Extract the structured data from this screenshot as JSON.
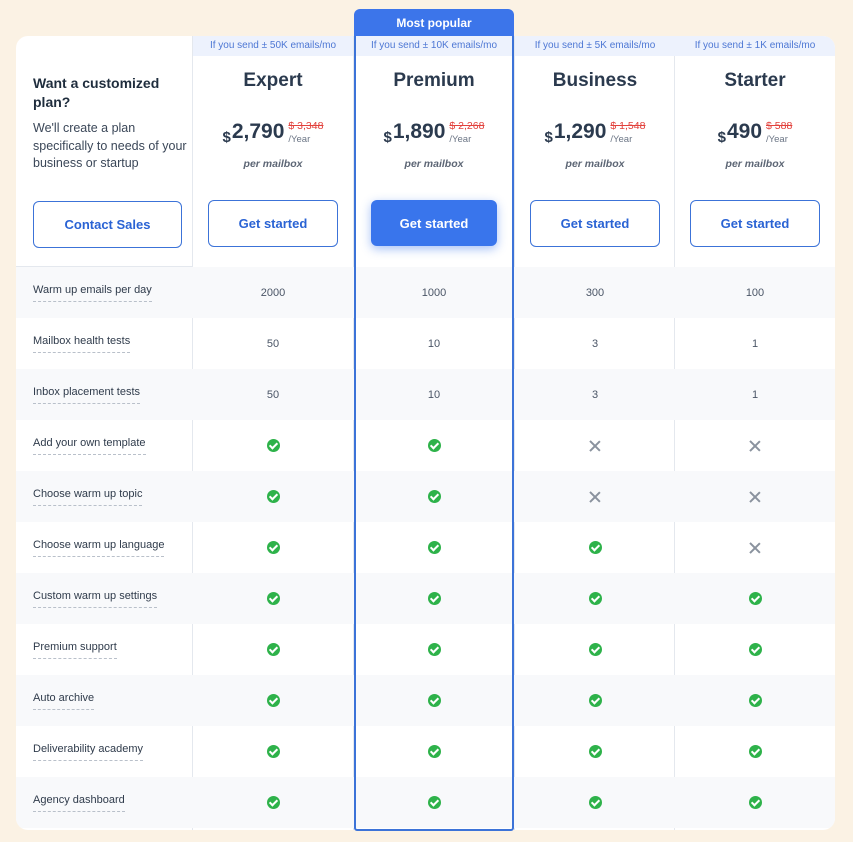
{
  "badge": "Most popular",
  "intro": {
    "title": "Want a customized plan?",
    "description": "We'll create a plan specifically to needs of your business or startup",
    "contact_label": "Contact Sales"
  },
  "currency_symbol": "$",
  "plans": [
    {
      "name": "Expert",
      "subheading": "If you send ± 50K emails/mo",
      "price": "2,790",
      "old_price": "$ 3,348",
      "period": "/Year",
      "per": "per mailbox",
      "cta": "Get started"
    },
    {
      "name": "Premium",
      "subheading": "If you send ± 10K emails/mo",
      "price": "1,890",
      "old_price": "$ 2,268",
      "period": "/Year",
      "per": "per mailbox",
      "cta": "Get started"
    },
    {
      "name": "Business",
      "subheading": "If you send ± 5K emails/mo",
      "price": "1,290",
      "old_price": "$ 1,548",
      "period": "/Year",
      "per": "per mailbox",
      "cta": "Get started"
    },
    {
      "name": "Starter",
      "subheading": "If you send ± 1K emails/mo",
      "price": "490",
      "old_price": "$ 588",
      "period": "/Year",
      "per": "per mailbox",
      "cta": "Get started"
    }
  ],
  "features": [
    {
      "label": "Warm up emails per day",
      "values": [
        "2000",
        "1000",
        "300",
        "100"
      ]
    },
    {
      "label": "Mailbox health tests",
      "values": [
        "50",
        "10",
        "3",
        "1"
      ]
    },
    {
      "label": "Inbox placement tests",
      "values": [
        "50",
        "10",
        "3",
        "1"
      ]
    },
    {
      "label": "Add your own template",
      "values": [
        true,
        true,
        false,
        false
      ]
    },
    {
      "label": "Choose warm up topic",
      "values": [
        true,
        true,
        false,
        false
      ]
    },
    {
      "label": "Choose warm up language",
      "values": [
        true,
        true,
        true,
        false
      ]
    },
    {
      "label": "Custom warm up settings",
      "values": [
        true,
        true,
        true,
        true
      ]
    },
    {
      "label": "Premium support",
      "values": [
        true,
        true,
        true,
        true
      ]
    },
    {
      "label": "Auto archive",
      "values": [
        true,
        true,
        true,
        true
      ]
    },
    {
      "label": "Deliverability academy",
      "values": [
        true,
        true,
        true,
        true
      ]
    },
    {
      "label": "Agency dashboard",
      "values": [
        true,
        true,
        true,
        true
      ]
    }
  ],
  "colors": {
    "accent": "#3c75ea",
    "check": "#2eb24a",
    "strike": "#e2413c",
    "background": "#fbf2e4"
  }
}
